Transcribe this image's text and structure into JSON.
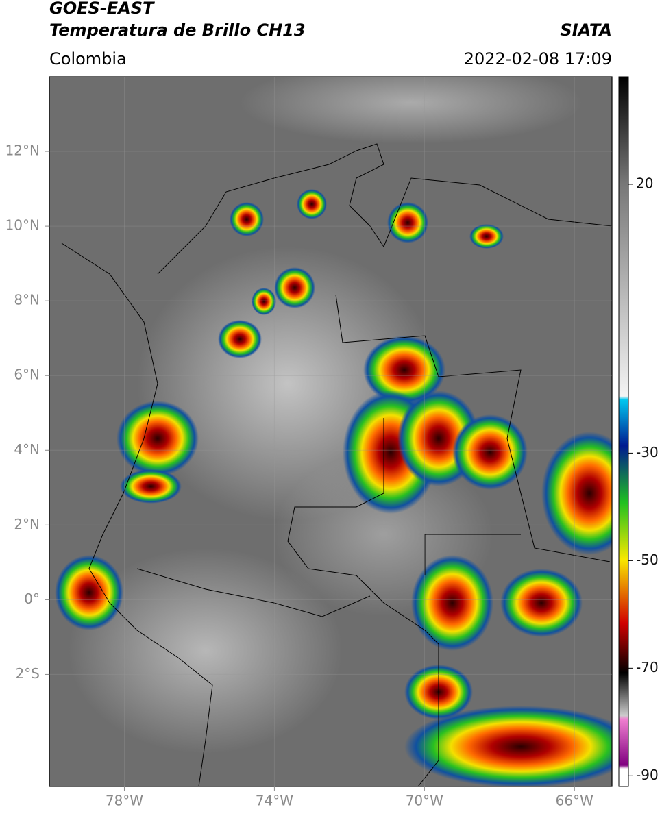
{
  "header": {
    "satellite": "GOES-EAST",
    "product": "Temperatura de Brillo CH13",
    "brand": "SIATA",
    "region": "Colombia",
    "datetime": "2022-02-08 17:09"
  },
  "map": {
    "xlim": [
      -80,
      -65
    ],
    "ylim": [
      -5,
      14
    ],
    "xticks": [
      {
        "value": -78,
        "label": "78°W"
      },
      {
        "value": -74,
        "label": "74°W"
      },
      {
        "value": -70,
        "label": "70°W"
      },
      {
        "value": -66,
        "label": "66°W"
      }
    ],
    "yticks": [
      {
        "value": 12,
        "label": "12°N"
      },
      {
        "value": 10,
        "label": "10°N"
      },
      {
        "value": 8,
        "label": "8°N"
      },
      {
        "value": 6,
        "label": "6°N"
      },
      {
        "value": 4,
        "label": "4°N"
      },
      {
        "value": 2,
        "label": "2°N"
      },
      {
        "value": 0,
        "label": "0°"
      },
      {
        "value": -2,
        "label": "2°S"
      }
    ],
    "grid": true
  },
  "colorbar": {
    "lim": [
      -92,
      40
    ],
    "ticks": [
      20,
      -30,
      -50,
      -70,
      -90
    ]
  }
}
